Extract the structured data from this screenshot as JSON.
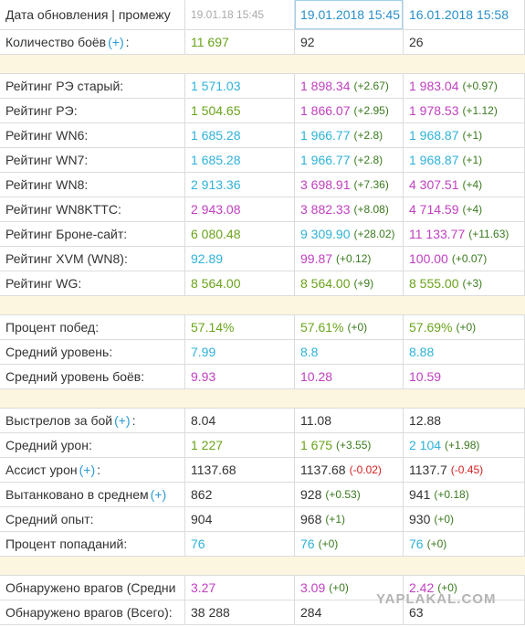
{
  "header": {
    "label": "Дата обновления | промежу",
    "columns": [
      {
        "text": "19.01.18 15:45",
        "color": "#aaaaaa"
      },
      {
        "text": "19.01.2018 15:45",
        "color": "#2a8fc9"
      },
      {
        "text": "16.01.2018 15:58",
        "color": "#2a8fc9"
      }
    ]
  },
  "sections": [
    {
      "rows": [
        {
          "label": "Количество боёв",
          "link": "(+)",
          "tail": ":",
          "cells": [
            {
              "value": "11 697",
              "color": "#6aa31a"
            },
            {
              "value": "92",
              "color": "#333333"
            },
            {
              "value": "26",
              "color": "#333333"
            }
          ]
        }
      ]
    },
    {
      "rows": [
        {
          "label": "Рейтинг РЭ старый:",
          "cells": [
            {
              "value": "1 571.03",
              "color": "#2fb2d9"
            },
            {
              "value": "1 898.34",
              "color": "#c040c0",
              "delta": "(+2.67)",
              "delta_color": "#3a7a1e"
            },
            {
              "value": "1 983.04",
              "color": "#c040c0",
              "delta": "(+0.97)",
              "delta_color": "#3a7a1e"
            }
          ]
        },
        {
          "label": "Рейтинг РЭ:",
          "cells": [
            {
              "value": "1 504.65",
              "color": "#6aa31a"
            },
            {
              "value": "1 866.07",
              "color": "#c040c0",
              "delta": "(+2.95)",
              "delta_color": "#3a7a1e"
            },
            {
              "value": "1 978.53",
              "color": "#c040c0",
              "delta": "(+1.12)",
              "delta_color": "#3a7a1e"
            }
          ]
        },
        {
          "label": "Рейтинг WN6:",
          "cells": [
            {
              "value": "1 685.28",
              "color": "#2fb2d9"
            },
            {
              "value": "1 966.77",
              "color": "#2fb2d9",
              "delta": "(+2.8)",
              "delta_color": "#3a7a1e"
            },
            {
              "value": "1 968.87",
              "color": "#2fb2d9",
              "delta": "(+1)",
              "delta_color": "#3a7a1e"
            }
          ]
        },
        {
          "label": "Рейтинг WN7:",
          "cells": [
            {
              "value": "1 685.28",
              "color": "#2fb2d9"
            },
            {
              "value": "1 966.77",
              "color": "#2fb2d9",
              "delta": "(+2.8)",
              "delta_color": "#3a7a1e"
            },
            {
              "value": "1 968.87",
              "color": "#2fb2d9",
              "delta": "(+1)",
              "delta_color": "#3a7a1e"
            }
          ]
        },
        {
          "label": "Рейтинг WN8:",
          "cells": [
            {
              "value": "2 913.36",
              "color": "#2fb2d9"
            },
            {
              "value": "3 698.91",
              "color": "#c040c0",
              "delta": "(+7.36)",
              "delta_color": "#3a7a1e"
            },
            {
              "value": "4 307.51",
              "color": "#c040c0",
              "delta": "(+4)",
              "delta_color": "#3a7a1e"
            }
          ]
        },
        {
          "label": "Рейтинг WN8KTTC:",
          "cells": [
            {
              "value": "2 943.08",
              "color": "#c040c0"
            },
            {
              "value": "3 882.33",
              "color": "#c040c0",
              "delta": "(+8.08)",
              "delta_color": "#3a7a1e"
            },
            {
              "value": "4 714.59",
              "color": "#c040c0",
              "delta": "(+4)",
              "delta_color": "#3a7a1e"
            }
          ]
        },
        {
          "label": "Рейтинг Броне-сайт:",
          "cells": [
            {
              "value": "6 080.48",
              "color": "#6aa31a"
            },
            {
              "value": "9 309.90",
              "color": "#2fb2d9",
              "delta": "(+28.02)",
              "delta_color": "#3a7a1e"
            },
            {
              "value": "11 133.77",
              "color": "#c040c0",
              "delta": "(+11.63)",
              "delta_color": "#3a7a1e"
            }
          ]
        },
        {
          "label": "Рейтинг XVM (WN8):",
          "cells": [
            {
              "value": "92.89",
              "color": "#2fb2d9"
            },
            {
              "value": "99.87",
              "color": "#c040c0",
              "delta": "(+0.12)",
              "delta_color": "#3a7a1e"
            },
            {
              "value": "100.00",
              "color": "#c040c0",
              "delta": "(+0.07)",
              "delta_color": "#3a7a1e"
            }
          ]
        },
        {
          "label": "Рейтинг WG:",
          "cells": [
            {
              "value": "8 564.00",
              "color": "#6aa31a"
            },
            {
              "value": "8 564.00",
              "color": "#6aa31a",
              "delta": "(+9)",
              "delta_color": "#3a7a1e"
            },
            {
              "value": "8 555.00",
              "color": "#6aa31a",
              "delta": "(+3)",
              "delta_color": "#3a7a1e"
            }
          ]
        }
      ]
    },
    {
      "rows": [
        {
          "label": "Процент побед:",
          "cells": [
            {
              "value": "57.14%",
              "color": "#6aa31a"
            },
            {
              "value": "57.61%",
              "color": "#6aa31a",
              "delta": "(+0)",
              "delta_color": "#3a7a1e"
            },
            {
              "value": "57.69%",
              "color": "#6aa31a",
              "delta": "(+0)",
              "delta_color": "#3a7a1e"
            }
          ]
        },
        {
          "label": "Средний уровень:",
          "cells": [
            {
              "value": "7.99",
              "color": "#2fb2d9"
            },
            {
              "value": "8.8",
              "color": "#2fb2d9"
            },
            {
              "value": "8.88",
              "color": "#2fb2d9"
            }
          ]
        },
        {
          "label": "Средний уровень боёв:",
          "cells": [
            {
              "value": "9.93",
              "color": "#c040c0"
            },
            {
              "value": "10.28",
              "color": "#c040c0"
            },
            {
              "value": "10.59",
              "color": "#c040c0"
            }
          ]
        }
      ]
    },
    {
      "rows": [
        {
          "label": "Выстрелов за бой",
          "link": "(+)",
          "tail": ":",
          "cells": [
            {
              "value": "8.04",
              "color": "#333333"
            },
            {
              "value": "11.08",
              "color": "#333333"
            },
            {
              "value": "12.88",
              "color": "#333333"
            }
          ]
        },
        {
          "label": "Средний урон:",
          "cells": [
            {
              "value": "1 227",
              "color": "#6aa31a"
            },
            {
              "value": "1 675",
              "color": "#6aa31a",
              "delta": "(+3.55)",
              "delta_color": "#3a7a1e"
            },
            {
              "value": "2 104",
              "color": "#2fb2d9",
              "delta": "(+1.98)",
              "delta_color": "#3a7a1e"
            }
          ]
        },
        {
          "label": "Ассист урон",
          "link": "(+)",
          "tail": ":",
          "cells": [
            {
              "value": "1137.68",
              "color": "#333333"
            },
            {
              "value": "1137.68",
              "color": "#333333",
              "delta": "(-0.02)",
              "delta_color": "#d62020"
            },
            {
              "value": "1137.7",
              "color": "#333333",
              "delta": "(-0.45)",
              "delta_color": "#d62020"
            }
          ]
        },
        {
          "label": "Вытанковано в среднем",
          "link": "(+)",
          "cells": [
            {
              "value": "862",
              "color": "#333333"
            },
            {
              "value": "928",
              "color": "#333333",
              "delta": "(+0.53)",
              "delta_color": "#3a7a1e"
            },
            {
              "value": "941",
              "color": "#333333",
              "delta": "(+0.18)",
              "delta_color": "#3a7a1e"
            }
          ]
        },
        {
          "label": "Средний опыт:",
          "cells": [
            {
              "value": "904",
              "color": "#333333"
            },
            {
              "value": "968",
              "color": "#333333",
              "delta": "(+1)",
              "delta_color": "#3a7a1e"
            },
            {
              "value": "930",
              "color": "#333333",
              "delta": "(+0)",
              "delta_color": "#3a7a1e"
            }
          ]
        },
        {
          "label": "Процент попаданий:",
          "cells": [
            {
              "value": "76",
              "color": "#2fb2d9"
            },
            {
              "value": "76",
              "color": "#2fb2d9",
              "delta": "(+0)",
              "delta_color": "#3a7a1e"
            },
            {
              "value": "76",
              "color": "#2fb2d9",
              "delta": "(+0)",
              "delta_color": "#3a7a1e"
            }
          ]
        }
      ]
    },
    {
      "rows": [
        {
          "label": "Обнаружено врагов (Средни",
          "cells": [
            {
              "value": "3.27",
              "color": "#c040c0"
            },
            {
              "value": "3.09",
              "color": "#c040c0",
              "delta": "(+0)",
              "delta_color": "#3a7a1e"
            },
            {
              "value": "2.42",
              "color": "#c040c0",
              "delta": "(+0)",
              "delta_color": "#3a7a1e"
            }
          ]
        },
        {
          "label": "Обнаружено врагов (Всего):",
          "cells": [
            {
              "value": "38 288",
              "color": "#333333"
            },
            {
              "value": "284",
              "color": "#333333"
            },
            {
              "value": "63",
              "color": "#333333"
            }
          ]
        }
      ]
    }
  ],
  "watermark": "YAPLAKAL.COM"
}
